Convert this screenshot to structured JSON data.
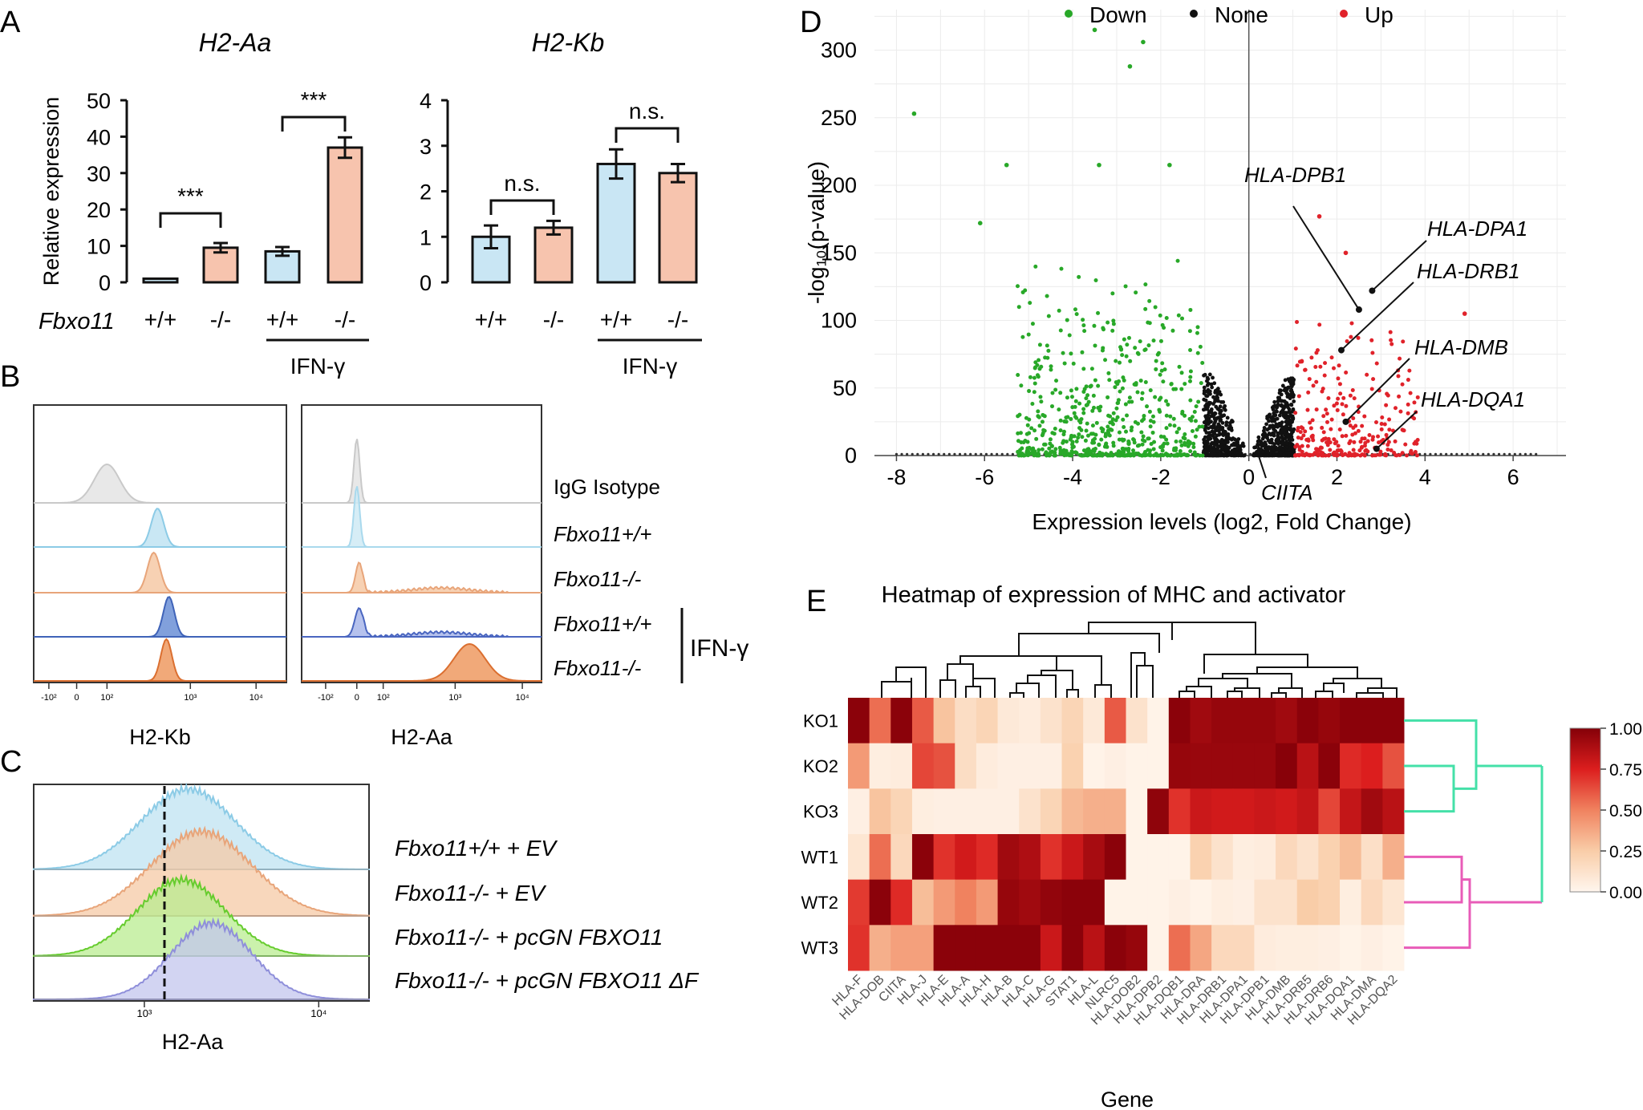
{
  "panels": {
    "A": "A",
    "B": "B",
    "C": "C",
    "D": "D",
    "E": "E"
  },
  "colors": {
    "wt": "#c9e6f4",
    "ko": "#f7c4ae",
    "bar_edge": "#111111",
    "green": "#28a828",
    "red": "#e0222a",
    "black": "#111111",
    "cyan": "#44e0a8",
    "pink": "#e85cb8"
  },
  "chart_data": [
    {
      "id": "A1",
      "type": "bar",
      "title": "H2-Aa",
      "ylabel": "Relative expression",
      "ylim": [
        0,
        50
      ],
      "yticks": [
        0,
        10,
        20,
        30,
        40,
        50
      ],
      "categories": [
        "+/+",
        "-/-",
        "+/+",
        "-/-"
      ],
      "values": [
        1,
        9.5,
        8.5,
        37
      ],
      "errors": [
        0.2,
        1.3,
        1.2,
        2.8
      ],
      "genotype_label": "Fbxo11",
      "treatment_label": "IFN-γ",
      "significance": [
        {
          "pair": [
            0,
            1
          ],
          "label": "***"
        },
        {
          "pair": [
            2,
            3
          ],
          "label": "***"
        }
      ]
    },
    {
      "id": "A2",
      "type": "bar",
      "title": "H2-Kb",
      "ylim": [
        0,
        4
      ],
      "yticks": [
        0,
        1,
        2,
        3,
        4
      ],
      "categories": [
        "+/+",
        "-/-",
        "+/+",
        "-/-"
      ],
      "values": [
        1,
        1.2,
        2.6,
        2.4
      ],
      "errors": [
        0.25,
        0.15,
        0.32,
        0.2
      ],
      "treatment_label": "IFN-γ",
      "significance": [
        {
          "pair": [
            0,
            1
          ],
          "label": "n.s."
        },
        {
          "pair": [
            2,
            3
          ],
          "label": "n.s."
        }
      ]
    },
    {
      "id": "B",
      "type": "histogram_overlay",
      "xlabels": [
        "H2-Kb",
        "H2-Aa"
      ],
      "row_labels": [
        "IgG Isotype",
        "Fbxo11+/+",
        "Fbxo11-/-",
        "Fbxo11+/+",
        "Fbxo11-/-"
      ],
      "treatment_label": "IFN-γ",
      "tick_labels_left": [
        "-10²",
        "0",
        "10²",
        "10³",
        "10⁴"
      ],
      "tick_labels_right": [
        "-10²",
        "0",
        "10²",
        "10³",
        "10⁴"
      ]
    },
    {
      "id": "C",
      "type": "histogram_overlay",
      "xlabel": "H2-Aa",
      "tick_labels": [
        "10³",
        "10⁴"
      ],
      "row_labels": [
        "Fbxo11+/+ + EV",
        "Fbxo11-/- + EV",
        "Fbxo11-/- + pcGN FBXO11",
        "Fbxo11-/- + pcGN FBXO11 ΔF"
      ]
    },
    {
      "id": "D",
      "type": "scatter",
      "xlabel": "Expression levels (log2, Fold Change)",
      "ylabel": "-log₁₀(p-value)",
      "xlim": [
        -8.5,
        7.2
      ],
      "ylim": [
        0,
        330
      ],
      "xticks": [
        -8,
        -6,
        -4,
        -2,
        0,
        2,
        4,
        6
      ],
      "yticks": [
        0,
        50,
        100,
        150,
        200,
        250,
        300
      ],
      "legend": [
        "Down",
        "None",
        "Up"
      ],
      "annotations": [
        {
          "label": "HLA-DPB1",
          "point": [
            2.5,
            108
          ]
        },
        {
          "label": "HLA-DPA1",
          "point": [
            2.8,
            122
          ]
        },
        {
          "label": "HLA-DRB1",
          "point": [
            2.1,
            78
          ]
        },
        {
          "label": "HLA-DMB",
          "point": [
            2.2,
            25
          ]
        },
        {
          "label": "HLA-DQA1",
          "point": [
            2.9,
            5
          ]
        },
        {
          "label": "CIITA",
          "point": [
            0.2,
            2
          ]
        }
      ],
      "highlight_points": [
        [
          -7.6,
          253
        ],
        [
          -5.5,
          215
        ],
        [
          -3.5,
          315
        ],
        [
          -2.4,
          306
        ],
        [
          -2.7,
          288
        ],
        [
          -1.8,
          215
        ],
        [
          -3.4,
          215
        ],
        [
          -6.1,
          172
        ],
        [
          1.6,
          177
        ],
        [
          2.2,
          150
        ],
        [
          4.9,
          105
        ]
      ]
    },
    {
      "id": "E",
      "type": "heatmap",
      "title": "Heatmap of expression of MHC and activator",
      "xlabel": "Gene",
      "rows": [
        "KO1",
        "KO2",
        "KO3",
        "WT1",
        "WT2",
        "WT3"
      ],
      "cols": [
        "HLA-F",
        "HLA-DOB",
        "CIITA",
        "HLA-J",
        "HLA-E",
        "HLA-A",
        "HLA-H",
        "HLA-B",
        "HLA-C",
        "HLA-G",
        "STAT1",
        "HLA-L",
        "NLRC5",
        "HLA-DOB2",
        "HLA-DPB2",
        "HLA-DQB1",
        "HLA-DRA",
        "HLA-DRB1",
        "HLA-DPA1",
        "HLA-DPB1",
        "HLA-DMB",
        "HLA-DRB5",
        "HLA-DRB6",
        "HLA-DQA1",
        "HLA-DMA",
        "HLA-DQA2"
      ],
      "colorbar_ticks": [
        "1.00",
        "0.75",
        "0.50",
        "0.25",
        "0.00"
      ],
      "values": [
        [
          0.98,
          0.55,
          0.98,
          0.6,
          0.28,
          0.15,
          0.2,
          0.08,
          0.06,
          0.12,
          0.2,
          0.08,
          0.6,
          0.12,
          0.02,
          0.98,
          0.92,
          0.95,
          0.95,
          0.95,
          0.92,
          0.98,
          0.95,
          0.98,
          0.98,
          0.98
        ],
        [
          0.42,
          0.05,
          0.06,
          0.65,
          0.62,
          0.15,
          0.06,
          0.04,
          0.04,
          0.04,
          0.22,
          0.02,
          0.04,
          0.02,
          0.02,
          0.95,
          0.94,
          0.94,
          0.94,
          0.94,
          0.99,
          0.85,
          0.98,
          0.72,
          0.75,
          0.62
        ],
        [
          0.04,
          0.28,
          0.2,
          0.05,
          0.04,
          0.04,
          0.04,
          0.04,
          0.12,
          0.2,
          0.32,
          0.35,
          0.35,
          0.02,
          0.97,
          0.7,
          0.8,
          0.78,
          0.78,
          0.8,
          0.78,
          0.82,
          0.65,
          0.82,
          0.92,
          0.85
        ],
        [
          0.1,
          0.55,
          0.18,
          0.98,
          0.7,
          0.78,
          0.72,
          0.92,
          0.88,
          0.7,
          0.8,
          0.9,
          0.98,
          0.02,
          0.02,
          0.02,
          0.22,
          0.12,
          0.05,
          0.06,
          0.18,
          0.12,
          0.22,
          0.3,
          0.14,
          0.35
        ],
        [
          0.68,
          0.98,
          0.72,
          0.3,
          0.42,
          0.5,
          0.42,
          0.95,
          0.92,
          0.96,
          0.98,
          0.98,
          0.02,
          0.02,
          0.02,
          0.04,
          0.02,
          0.05,
          0.04,
          0.12,
          0.12,
          0.25,
          0.22,
          0.05,
          0.18,
          0.1
        ],
        [
          0.7,
          0.35,
          0.4,
          0.4,
          0.98,
          0.98,
          0.98,
          0.98,
          0.98,
          0.8,
          0.98,
          0.85,
          0.98,
          0.95,
          0.02,
          0.55,
          0.38,
          0.18,
          0.18,
          0.06,
          0.05,
          0.05,
          0.04,
          0.02,
          0.04,
          0.02
        ]
      ]
    }
  ]
}
